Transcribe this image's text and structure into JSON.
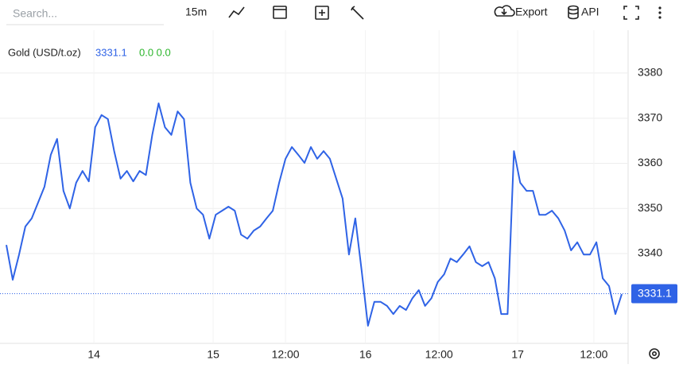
{
  "toolbar": {
    "search_placeholder": "Search...",
    "interval": "15m",
    "export": "Export",
    "api": "API"
  },
  "chart_data": {
    "type": "line",
    "legend_name": "Gold (USD/t.oz)",
    "change": "0.0 0.0",
    "last_price": 3331.1,
    "color": "#2f63e6",
    "values": [
      3341.9,
      3334.2,
      3339.8,
      3346.0,
      3347.8,
      3351.3,
      3354.8,
      3361.9,
      3365.4,
      3353.9,
      3350.0,
      3355.7,
      3358.3,
      3356.0,
      3368.0,
      3370.7,
      3369.8,
      3362.7,
      3356.6,
      3358.3,
      3356.0,
      3358.3,
      3357.4,
      3366.3,
      3373.3,
      3368.0,
      3366.3,
      3371.5,
      3369.8,
      3355.7,
      3350.0,
      3348.6,
      3343.3,
      3348.6,
      3349.5,
      3350.4,
      3349.5,
      3344.2,
      3343.3,
      3345.1,
      3346.0,
      3347.8,
      3349.5,
      3355.7,
      3361.0,
      3363.6,
      3361.9,
      3360.1,
      3363.6,
      3361.0,
      3362.7,
      3361.0,
      3356.6,
      3352.2,
      3339.8,
      3347.8,
      3336.3,
      3324.0,
      3329.3,
      3329.3,
      3328.4,
      3326.6,
      3328.4,
      3327.5,
      3330.1,
      3331.9,
      3328.4,
      3330.1,
      3333.7,
      3335.4,
      3338.9,
      3338.1,
      3339.8,
      3341.6,
      3338.1,
      3337.2,
      3338.1,
      3334.5,
      3326.6,
      3326.6,
      3362.7,
      3355.7,
      3353.9,
      3353.9,
      3348.6,
      3348.6,
      3349.5,
      3347.8,
      3345.1,
      3340.7,
      3342.5,
      3339.8,
      3339.8,
      3342.5,
      3334.5,
      3332.8,
      3326.6,
      3331.0
    ],
    "xlim": [
      0,
      97
    ],
    "xticks": [
      {
        "value": 13.8,
        "label": "14"
      },
      {
        "value": 32.6,
        "label": "15"
      },
      {
        "value": 44.0,
        "label": "12:00"
      },
      {
        "value": 56.6,
        "label": "16"
      },
      {
        "value": 68.2,
        "label": "12:00"
      },
      {
        "value": 80.6,
        "label": "17"
      },
      {
        "value": 92.6,
        "label": "12:00"
      }
    ],
    "ylim": [
      3320.1,
      3389.5
    ],
    "yticks": [
      3340,
      3350,
      3360,
      3370,
      3380
    ],
    "grid": true
  }
}
